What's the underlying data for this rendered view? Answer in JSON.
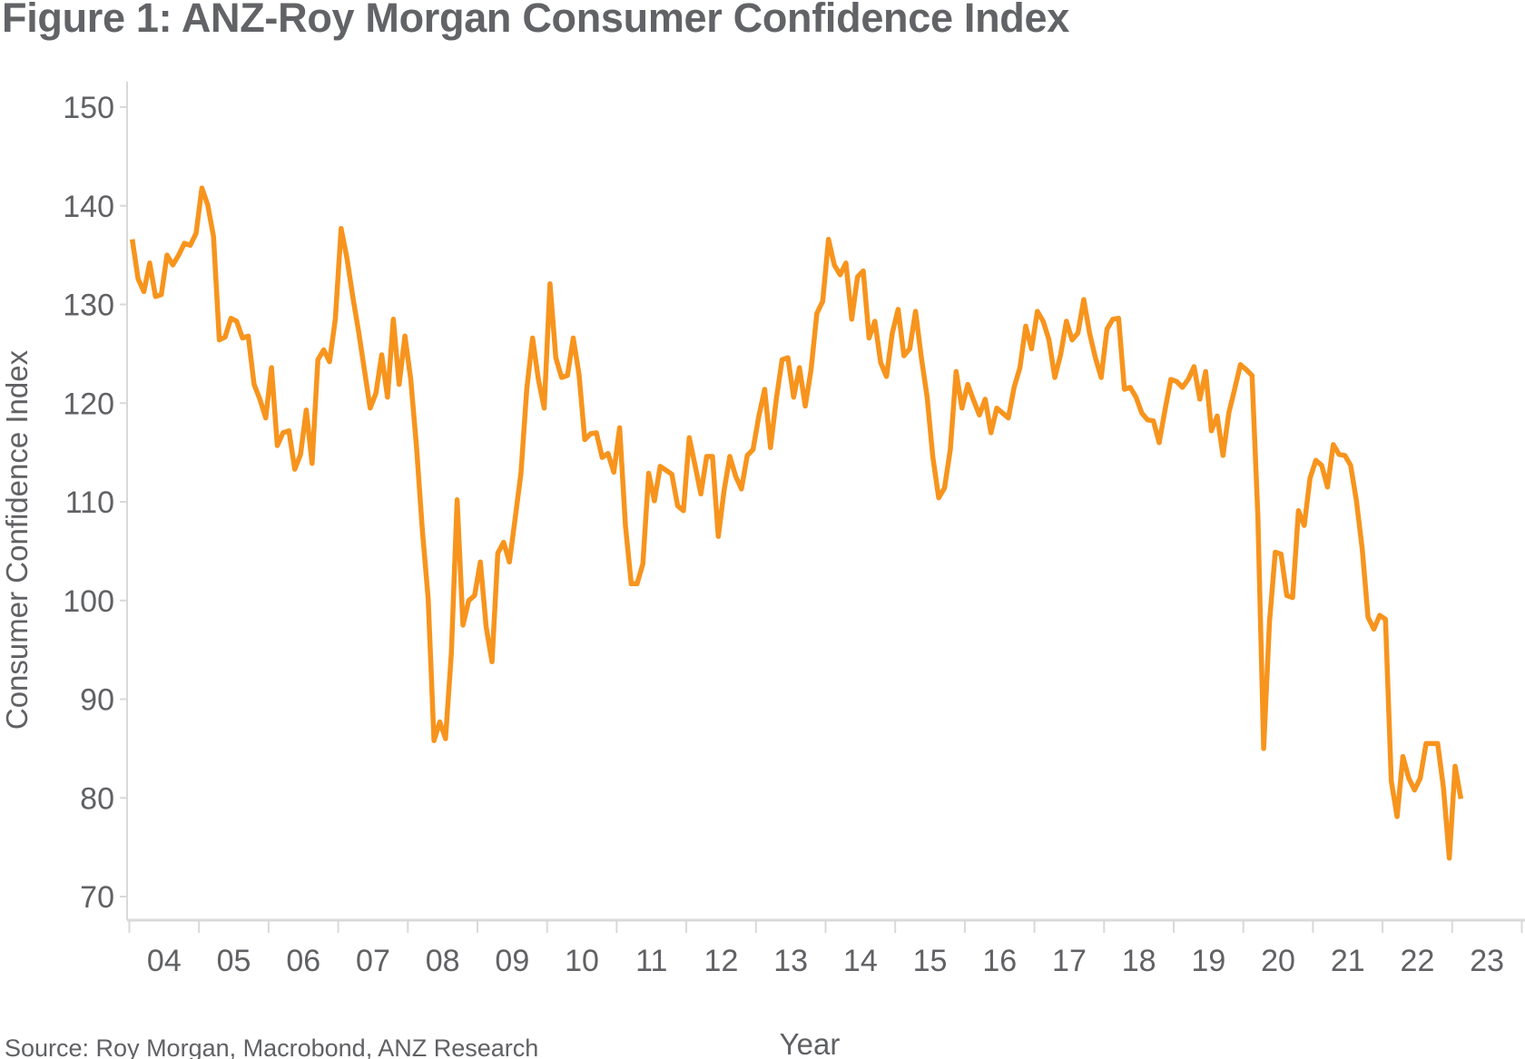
{
  "chart_data": {
    "type": "line",
    "title": "Figure 1: ANZ-Roy Morgan Consumer Confidence Index",
    "xlabel": "Year",
    "ylabel": "Consumer Confidence Index",
    "source": "Source: Roy Morgan, Macrobond, ANZ Research",
    "ylim": [
      70,
      150
    ],
    "yticks": [
      70,
      80,
      90,
      100,
      110,
      120,
      130,
      140,
      150
    ],
    "xlim": [
      "2004-01",
      "2023-12"
    ],
    "xtick_labels": [
      "04",
      "05",
      "06",
      "07",
      "08",
      "09",
      "10",
      "11",
      "12",
      "13",
      "14",
      "15",
      "16",
      "17",
      "18",
      "19",
      "20",
      "21",
      "22",
      "23"
    ],
    "grid": false,
    "line_color": "#F7941D",
    "frequency": "monthly",
    "series": [
      {
        "values_by_year": {
          "2004": [
            136.6,
            132.6,
            131.3,
            134.2,
            130.8,
            131,
            135,
            134,
            135,
            136.2,
            136,
            137.2
          ],
          "2005": [
            141.8,
            140.1,
            136.9,
            126.4,
            126.7,
            128.6,
            128.3,
            126.6,
            126.8,
            121.9,
            120.4,
            118.5
          ],
          "2006": [
            123.6,
            115.7,
            117,
            117.2,
            113.3,
            114.8,
            119.3,
            113.9,
            124.4,
            125.4,
            124.2,
            128.5
          ],
          "2007": [
            137.7,
            134.7,
            130.8,
            127.3,
            123.4,
            119.5,
            121,
            124.9,
            120.6,
            128.5,
            121.9,
            126.8
          ],
          "2008": [
            122.4,
            115.5,
            107.1,
            100.2,
            85.8,
            87.7,
            86,
            94.6,
            110.2,
            97.5,
            100,
            100.5
          ],
          "2009": [
            103.9,
            97.3,
            93.8,
            104.8,
            105.9,
            103.9,
            108.3,
            112.9,
            121.4,
            126.6,
            122.4,
            119.5
          ],
          "2010": [
            132.1,
            124.6,
            122.6,
            122.8,
            126.6,
            122.9,
            116.3,
            116.9,
            117,
            114.5,
            114.9,
            113
          ],
          "2011": [
            117.5,
            107.6,
            101.7,
            101.7,
            103.7,
            112.9,
            110.1,
            113.6,
            113.2,
            112.8,
            109.6,
            109.1
          ],
          "2012": [
            116.5,
            113.7,
            110.8,
            114.6,
            114.6,
            106.5,
            111.1,
            114.6,
            112.6,
            111.3,
            114.7,
            115.3
          ],
          "2013": [
            118.7,
            121.4,
            115.5,
            120.4,
            124.4,
            124.6,
            120.6,
            123.6,
            119.7,
            123.4,
            129.1,
            130.3
          ],
          "2014": [
            136.6,
            134,
            133,
            134.2,
            128.5,
            132.8,
            133.4,
            126.6,
            128.3,
            124.1,
            122.7,
            127.1
          ],
          "2015": [
            129.5,
            124.8,
            125.5,
            129.3,
            124.6,
            120.6,
            114.5,
            110.4,
            111.4,
            115.3,
            123.2,
            119.5
          ],
          "2016": [
            121.9,
            120.3,
            118.8,
            120.4,
            117,
            119.5,
            119,
            118.5,
            121.6,
            123.6,
            127.8,
            125.5
          ],
          "2017": [
            129.3,
            128.3,
            126.4,
            122.6,
            124.9,
            128.3,
            126.4,
            127.1,
            130.5,
            127.1,
            124.6,
            122.6
          ],
          "2018": [
            127.5,
            128.5,
            128.6,
            121.4,
            121.6,
            120.6,
            119,
            118.3,
            118.2,
            116,
            119.3,
            122.4
          ],
          "2019": [
            122.2,
            121.6,
            122.4,
            123.7,
            120.4,
            123.2,
            117.2,
            118.7,
            114.7,
            119,
            121.4,
            123.9
          ],
          "2020": [
            123.4,
            122.8,
            108.6,
            85,
            97.8,
            104.9,
            104.7,
            100.5,
            100.3,
            109.1,
            107.6,
            112.4
          ],
          "2021": [
            114.2,
            113.7,
            111.5,
            115.8,
            114.8,
            114.7,
            113.7,
            110.1,
            105.2,
            98.3,
            97.1,
            98.5
          ],
          "2022": [
            98.1,
            81.7,
            78.1,
            84.2,
            82,
            80.8,
            82,
            85.5,
            85.5,
            85.5,
            81,
            73.9
          ],
          "2023": [
            83.2,
            79.9
          ]
        }
      }
    ]
  }
}
